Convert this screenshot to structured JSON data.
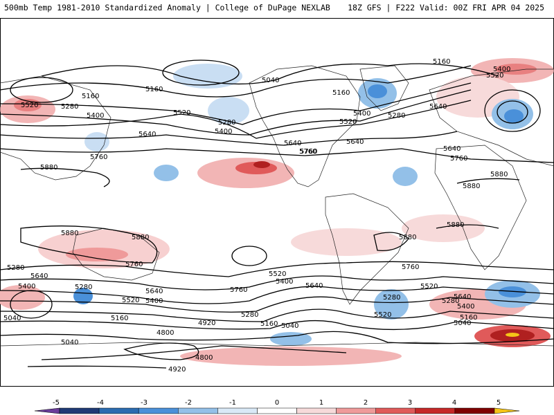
{
  "header": {
    "left": "500mb Temp 1981-2010 Standardized Anomaly | College of DuPage NEXLAB",
    "right": "18Z GFS | F222 Valid: 00Z FRI APR 04 2025"
  },
  "colorbar": {
    "ticks": [
      "-5",
      "-4",
      "-3",
      "-2",
      "-1",
      "0",
      "1",
      "2",
      "3",
      "4",
      "5"
    ],
    "colors": [
      "#6a3d9a",
      "#1f3a75",
      "#2b6cb0",
      "#4a90d9",
      "#93c0e8",
      "#d9e9f7",
      "#ffffff",
      "#f7dada",
      "#ef9a9a",
      "#e05a5a",
      "#c62828",
      "#7f0000",
      "#f5c518"
    ]
  },
  "contour_labels": [
    {
      "id": "label-5160-a",
      "text": "5160"
    },
    {
      "id": "label-5400-a",
      "text": "5400"
    },
    {
      "id": "label-5520-a",
      "text": "5520"
    },
    {
      "id": "label-5040-a",
      "text": "5040"
    },
    {
      "id": "label-5160-b",
      "text": "5160"
    },
    {
      "id": "label-5400-b",
      "text": "5400"
    },
    {
      "id": "label-5520-b",
      "text": "5520"
    },
    {
      "id": "label-5280-a",
      "text": "5280"
    },
    {
      "id": "label-5640-a",
      "text": "5640"
    },
    {
      "id": "label-5760-a",
      "text": "5760"
    },
    {
      "id": "label-5160-c",
      "text": "5160"
    },
    {
      "id": "label-5520-c",
      "text": "5520"
    },
    {
      "id": "label-5280-b",
      "text": "5280"
    },
    {
      "id": "label-5400-c",
      "text": "5400"
    },
    {
      "id": "label-5640-b",
      "text": "5640"
    },
    {
      "id": "label-5640-c",
      "text": "5640"
    },
    {
      "id": "label-5760-b",
      "text": "5760"
    },
    {
      "id": "label-5160-d",
      "text": "5160"
    },
    {
      "id": "label-5400-d",
      "text": "5400"
    },
    {
      "id": "label-5520-d",
      "text": "5520"
    },
    {
      "id": "label-5280-c",
      "text": "5280"
    },
    {
      "id": "label-5640-d",
      "text": "5640"
    },
    {
      "id": "label-5760-c",
      "text": "5760"
    },
    {
      "id": "label-5880-a",
      "text": "5880"
    },
    {
      "id": "label-5880-b",
      "text": "5880"
    },
    {
      "id": "label-5640-e",
      "text": "5640"
    },
    {
      "id": "label-5760-d",
      "text": "5760"
    },
    {
      "id": "label-5880-c",
      "text": "5880"
    },
    {
      "id": "label-5880-d",
      "text": "5880"
    },
    {
      "id": "label-5880-e",
      "text": "5880"
    },
    {
      "id": "label-5880-f",
      "text": "5880"
    },
    {
      "id": "label-5880-g",
      "text": "5880"
    },
    {
      "id": "label-5760-e",
      "text": "5760"
    },
    {
      "id": "label-5760-f",
      "text": "5760"
    },
    {
      "id": "label-5760-g",
      "text": "5760"
    },
    {
      "id": "label-5520-e",
      "text": "5520"
    },
    {
      "id": "label-5400-e",
      "text": "5400"
    },
    {
      "id": "label-5640-f",
      "text": "5640"
    },
    {
      "id": "label-5280-d",
      "text": "5280"
    },
    {
      "id": "label-5640-g",
      "text": "5640"
    },
    {
      "id": "label-5520-f",
      "text": "5520"
    },
    {
      "id": "label-5400-f",
      "text": "5400"
    },
    {
      "id": "label-5280-e",
      "text": "5280"
    },
    {
      "id": "label-5160-e",
      "text": "5160"
    },
    {
      "id": "label-5040-b",
      "text": "5040"
    },
    {
      "id": "label-4920-a",
      "text": "4920"
    },
    {
      "id": "label-5280-f",
      "text": "5280"
    },
    {
      "id": "label-5160-f",
      "text": "5160"
    },
    {
      "id": "label-5040-c",
      "text": "5040"
    },
    {
      "id": "label-5520-g",
      "text": "5520"
    },
    {
      "id": "label-5640-h",
      "text": "5640"
    },
    {
      "id": "label-5400-g",
      "text": "5400"
    },
    {
      "id": "label-5160-g",
      "text": "5160"
    },
    {
      "id": "label-5040-d",
      "text": "5040"
    },
    {
      "id": "label-5280-g",
      "text": "5280"
    },
    {
      "id": "label-5040-e",
      "text": "5040"
    },
    {
      "id": "label-4800-a",
      "text": "4800"
    },
    {
      "id": "label-4800-b",
      "text": "4800"
    },
    {
      "id": "label-4920-b",
      "text": "4920"
    },
    {
      "id": "label-5520-h",
      "text": "5520"
    },
    {
      "id": "label-5400-h",
      "text": "5400"
    },
    {
      "id": "label-5640-i",
      "text": "5640"
    },
    {
      "id": "label-5280-h",
      "text": "5280"
    }
  ]
}
